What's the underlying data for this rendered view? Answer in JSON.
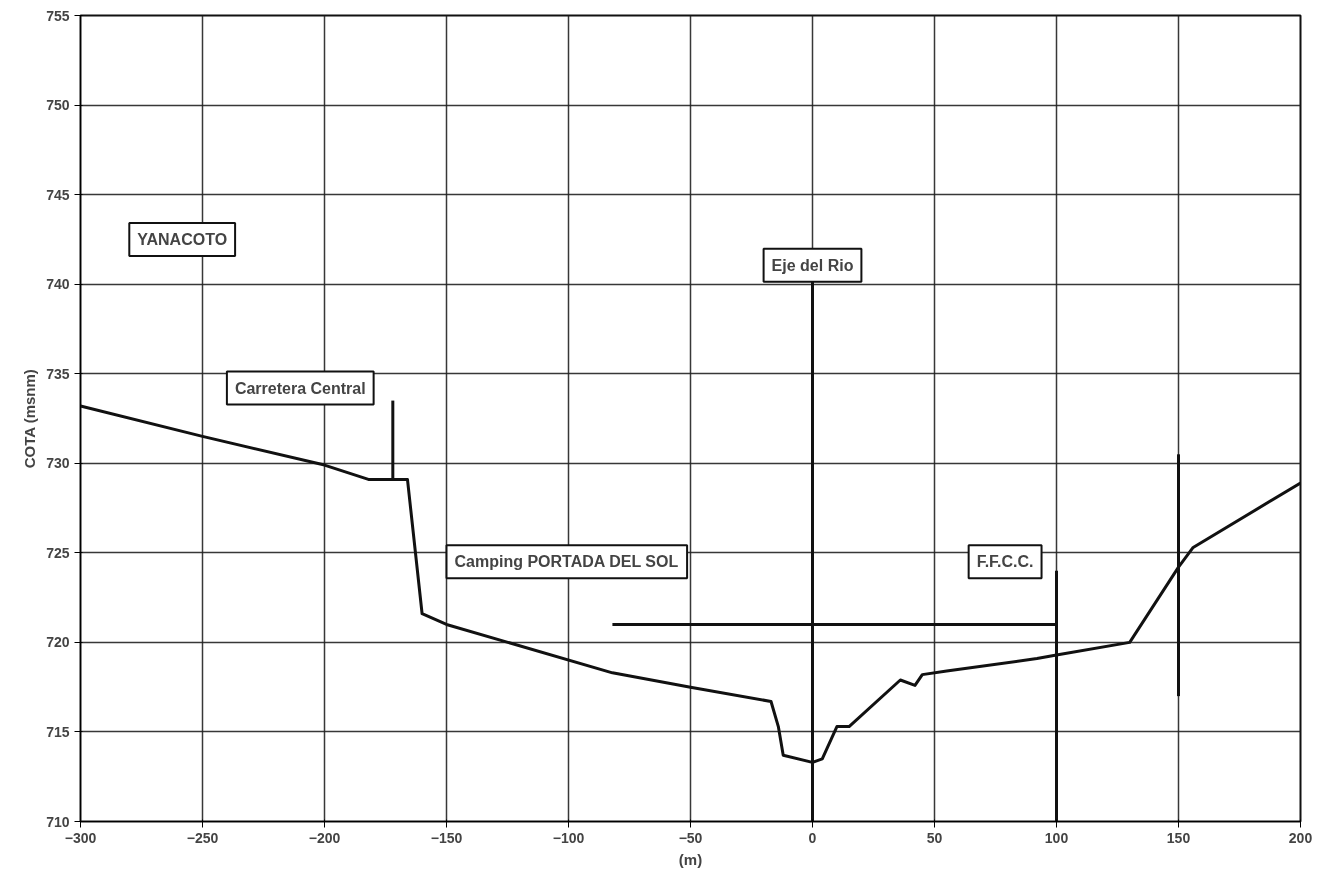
{
  "chart_data": {
    "type": "line",
    "xlabel": "(m)",
    "ylabel": "COTA (msnm)",
    "xlim": [
      -300,
      200
    ],
    "ylim": [
      710,
      755
    ],
    "xticks": [
      -300,
      -250,
      -200,
      -150,
      -100,
      -50,
      0,
      50,
      100,
      150,
      200
    ],
    "yticks": [
      710,
      715,
      720,
      725,
      730,
      735,
      740,
      745,
      750,
      755
    ],
    "grid": true,
    "marker": "none",
    "line_style": "solid",
    "series": [
      {
        "color": "#111111",
        "x": [
          -300,
          -250,
          -200,
          -182,
          -166,
          -160,
          -150,
          -82,
          -50,
          -17,
          -14,
          -12,
          0,
          4,
          10,
          15,
          36,
          42,
          45,
          55,
          92,
          100,
          130,
          150,
          156,
          200
        ],
        "values": [
          733.2,
          731.5,
          729.9,
          729.1,
          729.1,
          721.6,
          721.0,
          718.3,
          717.5,
          716.7,
          715.3,
          713.7,
          713.3,
          713.5,
          715.3,
          715.3,
          717.9,
          717.6,
          718.2,
          718.4,
          719.1,
          719.3,
          720.0,
          724.2,
          725.3,
          728.9
        ]
      },
      {
        "color": "#111111",
        "x": [
          -82,
          100
        ],
        "values": [
          721,
          721
        ]
      },
      {
        "color": "#111111",
        "x": [
          -172,
          -172
        ],
        "values": [
          729.1,
          733.5
        ]
      },
      {
        "color": "#111111",
        "x": [
          100,
          100
        ],
        "values": [
          710,
          724
        ]
      },
      {
        "color": "#111111",
        "x": [
          150,
          150
        ],
        "values": [
          717,
          730.5
        ]
      }
    ],
    "ref_lines": [
      {
        "axis": "x",
        "value": 0,
        "label": "Eje del Rio"
      }
    ],
    "annotations": [
      "YANACOTO",
      "Carretera Central",
      "Camping PORTADA DEL SOL",
      "F.F.C.C."
    ]
  }
}
